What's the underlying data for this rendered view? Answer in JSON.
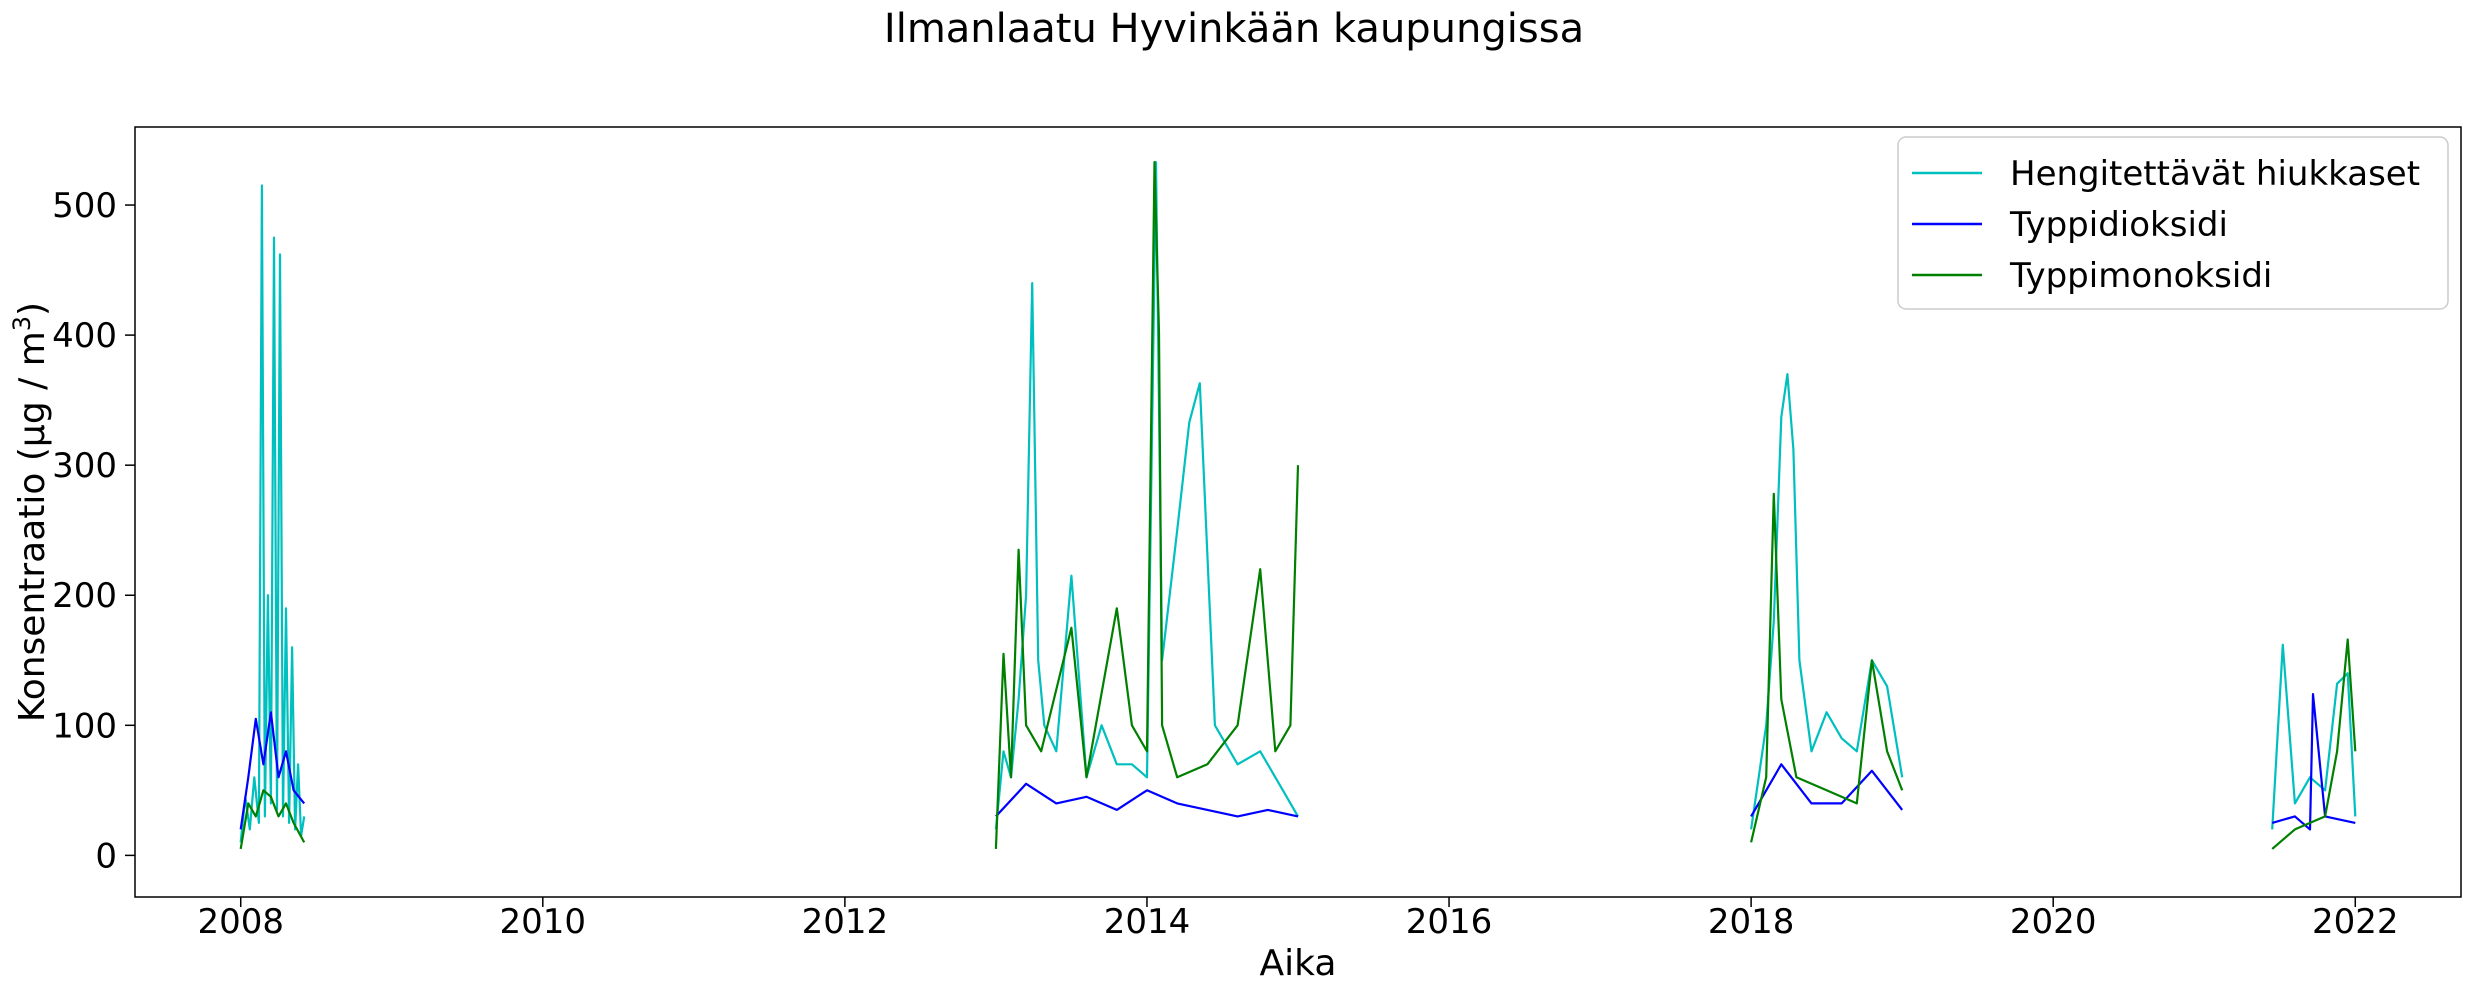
{
  "chart_data": {
    "type": "line",
    "title": "Ilmanlaatu Hyvinkään kaupungissa",
    "xlabel": "Aika",
    "ylabel_main": "Konsentraatio (μg / m",
    "ylabel_sup": "3",
    "ylabel_close": ")",
    "xlim": [
      2007.3,
      2022.7
    ],
    "ylim": [
      -32,
      560
    ],
    "x_ticks": [
      {
        "value": 2008,
        "label": "2008"
      },
      {
        "value": 2010,
        "label": "2010"
      },
      {
        "value": 2012,
        "label": "2012"
      },
      {
        "value": 2014,
        "label": "2014"
      },
      {
        "value": 2016,
        "label": "2016"
      },
      {
        "value": 2018,
        "label": "2018"
      },
      {
        "value": 2020,
        "label": "2020"
      },
      {
        "value": 2022,
        "label": "2022"
      }
    ],
    "y_ticks": [
      {
        "value": 0,
        "label": "0"
      },
      {
        "value": 100,
        "label": "100"
      },
      {
        "value": 200,
        "label": "200"
      },
      {
        "value": 300,
        "label": "300"
      },
      {
        "value": 400,
        "label": "400"
      },
      {
        "value": 500,
        "label": "500"
      }
    ],
    "grid": false,
    "legend_position": "top-right",
    "series": [
      {
        "name": "Hengitettävät hiukkaset",
        "color": "#00bfbf",
        "segments": [
          {
            "x": [
              2008.0,
              2008.03,
              2008.06,
              2008.09,
              2008.12,
              2008.14,
              2008.16,
              2008.18,
              2008.2,
              2008.22,
              2008.24,
              2008.26,
              2008.28,
              2008.3,
              2008.32,
              2008.34,
              2008.36,
              2008.38,
              2008.4,
              2008.42
            ],
            "y": [
              10,
              45,
              20,
              60,
              25,
              515,
              30,
              200,
              40,
              475,
              35,
              462,
              30,
              190,
              25,
              160,
              20,
              70,
              15,
              30
            ]
          },
          {
            "x": [
              2013.0,
              2013.05,
              2013.1,
              2013.15,
              2013.2,
              2013.24,
              2013.28,
              2013.32,
              2013.4,
              2013.5,
              2013.6,
              2013.7,
              2013.8,
              2013.9,
              2014.0,
              2014.06,
              2014.1,
              2014.2,
              2014.28,
              2014.35,
              2014.45,
              2014.6,
              2014.75,
              2014.9,
              2015.0
            ],
            "y": [
              20,
              80,
              60,
              120,
              200,
              440,
              150,
              100,
              80,
              215,
              60,
              100,
              70,
              70,
              60,
              533,
              150,
              250,
              333,
              363,
              100,
              70,
              80,
              50,
              30
            ]
          },
          {
            "x": [
              2018.0,
              2018.05,
              2018.1,
              2018.15,
              2018.2,
              2018.24,
              2018.28,
              2018.32,
              2018.4,
              2018.5,
              2018.6,
              2018.7,
              2018.8,
              2018.9,
              2019.0
            ],
            "y": [
              20,
              60,
              100,
              180,
              337,
              370,
              312,
              150,
              80,
              110,
              90,
              80,
              150,
              130,
              60
            ]
          },
          {
            "x": [
              2021.45,
              2021.52,
              2021.6,
              2021.7,
              2021.8,
              2021.88,
              2021.95,
              2022.0
            ],
            "y": [
              20,
              162,
              40,
              60,
              50,
              132,
              140,
              30
            ]
          }
        ]
      },
      {
        "name": "Typpidioksidi",
        "color": "#0000ff",
        "segments": [
          {
            "x": [
              2008.0,
              2008.05,
              2008.1,
              2008.15,
              2008.2,
              2008.25,
              2008.3,
              2008.35,
              2008.42
            ],
            "y": [
              20,
              60,
              105,
              70,
              110,
              60,
              80,
              50,
              40
            ]
          },
          {
            "x": [
              2013.0,
              2013.2,
              2013.4,
              2013.6,
              2013.8,
              2014.0,
              2014.2,
              2014.4,
              2014.6,
              2014.8,
              2015.0
            ],
            "y": [
              30,
              55,
              40,
              45,
              35,
              50,
              40,
              35,
              30,
              35,
              30
            ]
          },
          {
            "x": [
              2018.0,
              2018.2,
              2018.4,
              2018.6,
              2018.8,
              2019.0
            ],
            "y": [
              30,
              70,
              40,
              40,
              65,
              35
            ]
          },
          {
            "x": [
              2021.45,
              2021.6,
              2021.7,
              2021.72,
              2021.8,
              2022.0
            ],
            "y": [
              25,
              30,
              20,
              124,
              30,
              25
            ]
          }
        ]
      },
      {
        "name": "Typpimonoksidi",
        "color": "#008000",
        "segments": [
          {
            "x": [
              2008.0,
              2008.05,
              2008.1,
              2008.15,
              2008.2,
              2008.25,
              2008.3,
              2008.35,
              2008.42
            ],
            "y": [
              5,
              40,
              30,
              50,
              45,
              30,
              40,
              25,
              10
            ]
          },
          {
            "x": [
              2013.0,
              2013.05,
              2013.1,
              2013.15,
              2013.2,
              2013.3,
              2013.5,
              2013.6,
              2013.8,
              2013.9,
              2014.0,
              2014.05,
              2014.08,
              2014.1,
              2014.2,
              2014.4,
              2014.6,
              2014.75,
              2014.85,
              2014.95,
              2015.0
            ],
            "y": [
              5,
              155,
              60,
              235,
              100,
              80,
              175,
              60,
              190,
              100,
              80,
              533,
              402,
              100,
              60,
              70,
              100,
              220,
              80,
              100,
              300
            ]
          },
          {
            "x": [
              2018.0,
              2018.1,
              2018.15,
              2018.2,
              2018.3,
              2018.5,
              2018.7,
              2018.8,
              2018.9,
              2019.0
            ],
            "y": [
              10,
              60,
              278,
              120,
              60,
              50,
              40,
              150,
              80,
              50
            ]
          },
          {
            "x": [
              2021.45,
              2021.6,
              2021.8,
              2021.88,
              2021.95,
              2022.0
            ],
            "y": [
              5,
              20,
              30,
              80,
              166,
              80
            ]
          }
        ]
      }
    ]
  }
}
